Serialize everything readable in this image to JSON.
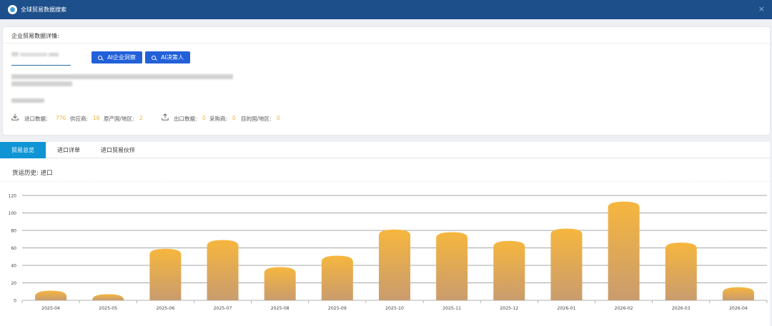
{
  "window": {
    "title": "全球贸易数据搜索",
    "close_icon": "×"
  },
  "info": {
    "heading": "企业贸易数据详情:",
    "ai_buttons": [
      {
        "label": "AI企业洞察",
        "icon": "search-icon"
      },
      {
        "label": "AI决策人",
        "icon": "search-icon"
      }
    ],
    "import": {
      "label": "进口数据:",
      "value": "776",
      "supplier_label": "供应商:",
      "supplier_value": "16",
      "origin_label": "原产国/地区:",
      "origin_value": "2"
    },
    "export": {
      "label": "出口数据:",
      "value": "0",
      "buyer_label": "采购商:",
      "buyer_value": "0",
      "dest_label": "目的国/地区:",
      "dest_value": "0"
    },
    "accent_color": "#f1b53a",
    "button_color": "#2260d9"
  },
  "tabs": [
    {
      "label": "贸易总览",
      "active": true
    },
    {
      "label": "进口详单",
      "active": false
    },
    {
      "label": "进口贸易伙伴",
      "active": false
    }
  ],
  "section": {
    "label": "货运历史: 进口"
  },
  "chart_data": {
    "type": "bar",
    "categories": [
      "2025-04",
      "2025-05",
      "2025-06",
      "2025-07",
      "2025-08",
      "2025-09",
      "2025-10",
      "2025-11",
      "2025-12",
      "2026-01",
      "2026-02",
      "2026-03",
      "2026-04"
    ],
    "values": [
      11,
      7,
      59,
      69,
      38,
      51,
      81,
      78,
      68,
      82,
      113,
      66,
      15
    ],
    "yticks": [
      0,
      20,
      40,
      60,
      80,
      100,
      120
    ],
    "ylim": [
      0,
      120
    ],
    "title": "",
    "xlabel": "",
    "ylabel": "",
    "grid": true,
    "bar_color_top": "#f6b63e",
    "bar_color_bottom": "#c99c6e"
  }
}
